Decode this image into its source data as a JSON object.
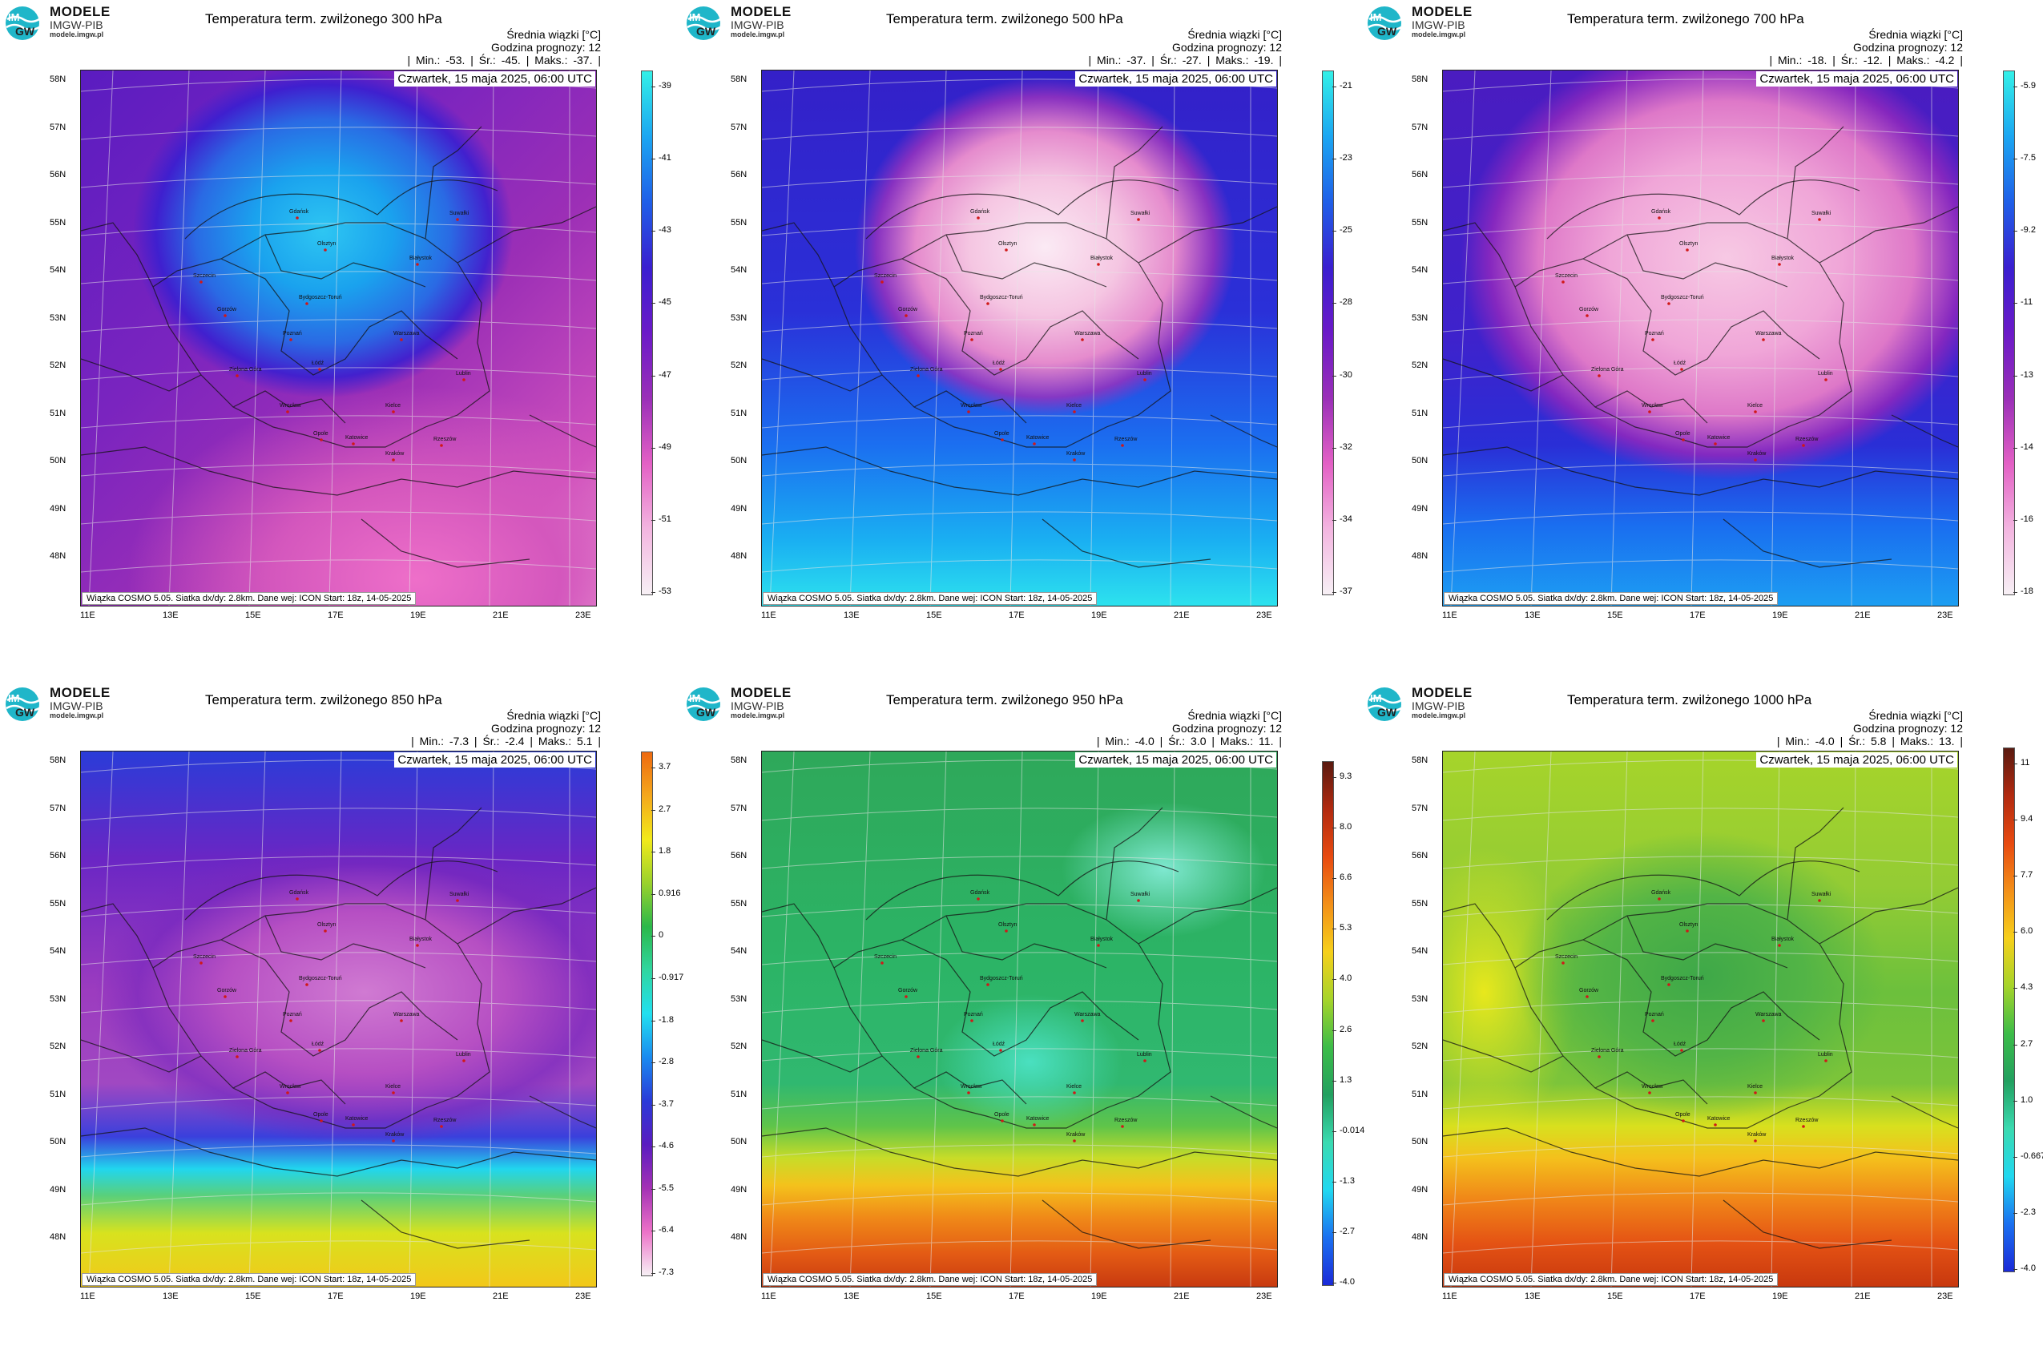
{
  "brand": {
    "name": "MODELE",
    "org": "IMGW-PIB",
    "site": "modele.imgw.pl",
    "logo_text_top": "IM",
    "logo_text_bottom": "GW"
  },
  "common": {
    "info_line1": "Średnia wiązki [°C]",
    "info_line2": "Godzina prognozy: 12",
    "date": "Czwartek, 15 maja 2025, 06:00 UTC",
    "source": "Wiązka COSMO 5.05. Siatka dx/dy: 2.8km. Dane wej: ICON Start: 18z, 14-05-2025",
    "lat_labels": [
      "58N",
      "57N",
      "56N",
      "55N",
      "54N",
      "53N",
      "52N",
      "51N",
      "50N",
      "49N",
      "48N"
    ],
    "lon_labels": [
      "11E",
      "13E",
      "15E",
      "17E",
      "19E",
      "21E",
      "23E"
    ],
    "cities": [
      "Gdańsk",
      "Olsztyn",
      "Szczecin",
      "Bydgoszcz-Toruń",
      "Białystok",
      "Gorzów",
      "Poznań",
      "Warszawa",
      "Zielona Góra",
      "Łódź",
      "Lublin",
      "Wrocław",
      "Opole",
      "Kielce",
      "Katowice",
      "Kraków",
      "Rzeszów",
      "Suwałki"
    ]
  },
  "panels": [
    {
      "title": "Temperatura term. zwilżonego 300 hPa",
      "stats": "| Min.: -53. | Śr.: -45. | Maks.: -37. |",
      "colorbar_ticks": [
        "-39",
        "-41",
        "-43",
        "-45",
        "-47",
        "-49",
        "-51",
        "-53"
      ],
      "colorbar_colors": [
        "#33f0e8",
        "#1ba6f2",
        "#1f5fe8",
        "#3a1fd0",
        "#6b1ac8",
        "#9a2fb8",
        "#e360c5",
        "#f3b5e0",
        "#f7f0f5"
      ]
    },
    {
      "title": "Temperatura term. zwilżonego 500 hPa",
      "stats": "| Min.: -37. | Śr.: -27. | Maks.: -19. |",
      "colorbar_ticks": [
        "-21",
        "-23",
        "-25",
        "-28",
        "-30",
        "-32",
        "-34",
        "-37"
      ],
      "colorbar_colors": [
        "#33f0e8",
        "#1ba6f2",
        "#1f5fe8",
        "#3a1fd0",
        "#6b1ac8",
        "#9a2fb8",
        "#e360c5",
        "#f3b5e0",
        "#f7f0f5"
      ]
    },
    {
      "title": "Temperatura term. zwilżonego 700 hPa",
      "stats": "| Min.: -18. | Śr.: -12. | Maks.: -4.2 |",
      "colorbar_ticks": [
        "-5.9",
        "-7.5",
        "-9.2",
        "-11",
        "-13",
        "-14",
        "-16",
        "-18"
      ],
      "colorbar_colors": [
        "#33f0e8",
        "#1ba6f2",
        "#1f5fe8",
        "#3a1fd0",
        "#6b1ac8",
        "#9a2fb8",
        "#e360c5",
        "#f3b5e0",
        "#f7f0f5"
      ]
    },
    {
      "title": "Temperatura term. zwilżonego 850 hPa",
      "stats": "| Min.: -7.3 | Śr.: -2.4 | Maks.: 5.1 |",
      "colorbar_ticks": [
        "3.7",
        "2.7",
        "1.8",
        "0.916",
        "0",
        "-0.917",
        "-1.8",
        "-2.8",
        "-3.7",
        "-4.6",
        "-5.5",
        "-6.4",
        "-7.3"
      ],
      "colorbar_colors": [
        "#ee6a10",
        "#f5a81c",
        "#f2ea1a",
        "#9ad22c",
        "#2bb84a",
        "#30d6a0",
        "#21e0f0",
        "#1a8af0",
        "#2a3ad8",
        "#5a1cc0",
        "#a431b5",
        "#ec72c8",
        "#f7f0f5"
      ]
    },
    {
      "title": "Temperatura term. zwilżonego 950 hPa",
      "stats": "| Min.: -4.0 | Śr.: 3.0 | Maks.: 11. |",
      "colorbar_ticks": [
        "9.3",
        "8.0",
        "6.6",
        "5.3",
        "4.0",
        "2.6",
        "1.3",
        "-0.014",
        "-1.3",
        "-2.7",
        "-4.0"
      ],
      "colorbar_colors": [
        "#5a1a10",
        "#b22a10",
        "#e84a10",
        "#f39018",
        "#f6d01a",
        "#a6d42a",
        "#3cbc48",
        "#22a060",
        "#3adab0",
        "#20d8f0",
        "#1a70f0",
        "#1a2ad8"
      ]
    },
    {
      "title": "Temperatura term. zwilżonego 1000 hPa",
      "stats": "| Min.: -4.0 | Śr.: 5.8 | Maks.: 13. |",
      "colorbar_ticks": [
        "11",
        "9.4",
        "7.7",
        "6.0",
        "4.3",
        "2.7",
        "1.0",
        "-0.667",
        "-2.3",
        "-4.0"
      ],
      "colorbar_colors": [
        "#5a1a10",
        "#b22a10",
        "#e84a10",
        "#f39018",
        "#f6d01a",
        "#a6d42a",
        "#3cbc48",
        "#22a060",
        "#3adab0",
        "#20d8f0",
        "#1a70f0",
        "#1a2ad8"
      ]
    }
  ]
}
